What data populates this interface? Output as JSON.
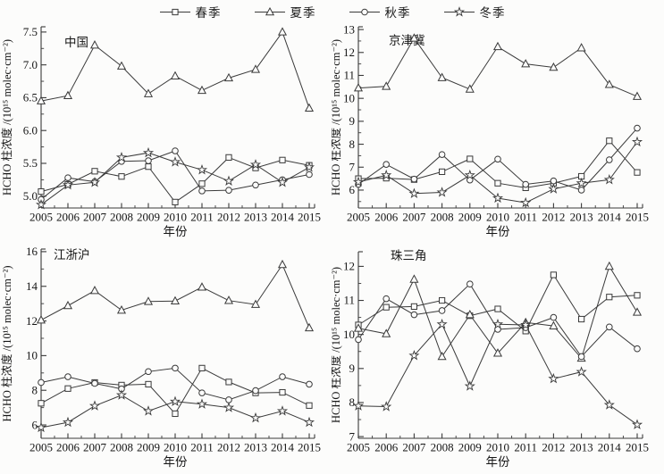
{
  "figure": {
    "legend": [
      {
        "label": "春季",
        "marker": "square"
      },
      {
        "label": "夏季",
        "marker": "triangle"
      },
      {
        "label": "秋季",
        "marker": "circle"
      },
      {
        "label": "冬季",
        "marker": "star"
      }
    ],
    "colors": {
      "line": "#3a3a3a",
      "text": "#161616",
      "marker_fill": "#fcfcfb",
      "background": "#fcfcfb"
    }
  },
  "chart_data": [
    {
      "type": "line",
      "title": "中国",
      "xlabel": "年份",
      "ylabel": "HCHO 柱浓度 /(10¹⁵ molec·cm⁻²)",
      "x": [
        2005,
        2006,
        2007,
        2008,
        2009,
        2010,
        2011,
        2012,
        2013,
        2014,
        2015
      ],
      "ylim": [
        4.82,
        7.58
      ],
      "yticks": [
        5.0,
        5.5,
        6.0,
        6.5,
        7.0,
        7.5
      ],
      "ytick_labels": [
        "5.0",
        "5.5",
        "6.0",
        "6.5",
        "7.0",
        "7.5"
      ],
      "yminor_step": 0.25,
      "grid": false,
      "series": [
        {
          "name": "春季",
          "marker": "square",
          "values": [
            5.07,
            5.18,
            5.38,
            5.3,
            5.45,
            4.91,
            5.19,
            5.59,
            5.43,
            5.55,
            5.47
          ]
        },
        {
          "name": "夏季",
          "marker": "triangle",
          "values": [
            6.45,
            6.53,
            7.3,
            6.98,
            6.56,
            6.83,
            6.61,
            6.8,
            6.93,
            7.5,
            6.34
          ]
        },
        {
          "name": "秋季",
          "marker": "circle",
          "values": [
            4.95,
            5.28,
            5.22,
            5.53,
            5.54,
            5.69,
            5.08,
            5.09,
            5.17,
            5.25,
            5.33
          ]
        },
        {
          "name": "冬季",
          "marker": "star",
          "values": [
            4.87,
            5.17,
            5.21,
            5.59,
            5.66,
            5.52,
            5.4,
            5.23,
            5.48,
            5.21,
            5.44
          ]
        }
      ]
    },
    {
      "type": "line",
      "title": "京津冀",
      "xlabel": "年份",
      "ylabel": "HCHO 柱浓度 /(10¹⁵ molec·cm⁻²)",
      "x": [
        2005,
        2006,
        2007,
        2008,
        2009,
        2010,
        2011,
        2012,
        2013,
        2014,
        2015
      ],
      "ylim": [
        5.22,
        13.12
      ],
      "yticks": [
        6,
        7,
        8,
        9,
        10,
        11,
        12,
        13
      ],
      "ytick_labels": [
        "6",
        "7",
        "8",
        "9",
        "10",
        "11",
        "12",
        "13"
      ],
      "yminor_step": 0.5,
      "grid": false,
      "series": [
        {
          "name": "春季",
          "marker": "square",
          "values": [
            6.5,
            6.52,
            6.46,
            6.8,
            7.36,
            6.3,
            6.1,
            6.3,
            6.6,
            8.15,
            6.77
          ]
        },
        {
          "name": "夏季",
          "marker": "triangle",
          "values": [
            10.45,
            10.52,
            12.62,
            10.9,
            10.4,
            12.25,
            11.5,
            11.35,
            12.2,
            10.6,
            10.08
          ]
        },
        {
          "name": "秋季",
          "marker": "circle",
          "values": [
            6.25,
            7.12,
            6.48,
            7.55,
            6.44,
            7.35,
            6.25,
            6.4,
            6.0,
            7.32,
            8.7
          ]
        },
        {
          "name": "冬季",
          "marker": "star",
          "values": [
            6.35,
            6.65,
            5.85,
            5.9,
            6.65,
            5.65,
            5.45,
            6.05,
            6.3,
            6.45,
            8.1
          ]
        }
      ]
    },
    {
      "type": "line",
      "title": "江浙沪",
      "xlabel": "年份",
      "ylabel": "HCHO 柱浓度 /(10¹⁵ molec·cm⁻²)",
      "x": [
        2005,
        2006,
        2007,
        2008,
        2009,
        2010,
        2011,
        2012,
        2013,
        2014,
        2015
      ],
      "ylim": [
        5.23,
        16.15
      ],
      "yticks": [
        6,
        8,
        10,
        12,
        14,
        16
      ],
      "ytick_labels": [
        "6",
        "8",
        "10",
        "12",
        "14",
        "16"
      ],
      "yminor_step": 1,
      "grid": false,
      "series": [
        {
          "name": "春季",
          "marker": "square",
          "values": [
            7.25,
            8.1,
            8.45,
            8.3,
            8.35,
            6.65,
            9.28,
            8.48,
            7.85,
            7.88,
            7.12
          ]
        },
        {
          "name": "夏季",
          "marker": "triangle",
          "values": [
            12.05,
            12.88,
            13.75,
            12.62,
            13.12,
            13.15,
            13.95,
            13.18,
            12.95,
            15.25,
            11.6
          ]
        },
        {
          "name": "秋季",
          "marker": "circle",
          "values": [
            8.45,
            8.78,
            8.4,
            8.08,
            9.08,
            9.28,
            7.85,
            7.45,
            7.98,
            8.78,
            8.35
          ]
        },
        {
          "name": "冬季",
          "marker": "star",
          "values": [
            5.85,
            6.15,
            7.1,
            7.72,
            6.8,
            7.35,
            7.2,
            7.0,
            6.4,
            6.8,
            6.15
          ]
        }
      ]
    },
    {
      "type": "line",
      "title": "珠三角",
      "xlabel": "年份",
      "ylabel": "HCHO 柱浓度 /(10¹⁵ molec·cm⁻²)",
      "x": [
        2005,
        2006,
        2007,
        2008,
        2009,
        2010,
        2011,
        2012,
        2013,
        2014,
        2015
      ],
      "ylim": [
        6.95,
        12.43
      ],
      "yticks": [
        7,
        8,
        9,
        10,
        11,
        12
      ],
      "ytick_labels": [
        "7",
        "8",
        "9",
        "10",
        "11",
        "12"
      ],
      "yminor_step": 0.5,
      "grid": false,
      "series": [
        {
          "name": "春季",
          "marker": "square",
          "values": [
            10.28,
            10.8,
            10.82,
            11.0,
            10.55,
            10.75,
            10.1,
            11.75,
            10.45,
            11.1,
            11.15
          ]
        },
        {
          "name": "夏季",
          "marker": "triangle",
          "values": [
            10.18,
            10.02,
            11.62,
            9.35,
            10.58,
            9.45,
            10.35,
            10.25,
            9.3,
            12.0,
            10.65
          ]
        },
        {
          "name": "秋季",
          "marker": "circle",
          "values": [
            9.85,
            11.05,
            10.58,
            10.7,
            11.48,
            10.15,
            10.2,
            10.5,
            9.35,
            10.22,
            9.58
          ]
        },
        {
          "name": "冬季",
          "marker": "star",
          "values": [
            7.9,
            7.88,
            9.38,
            10.3,
            8.48,
            10.3,
            10.28,
            8.7,
            8.9,
            7.93,
            7.35
          ]
        }
      ]
    }
  ]
}
